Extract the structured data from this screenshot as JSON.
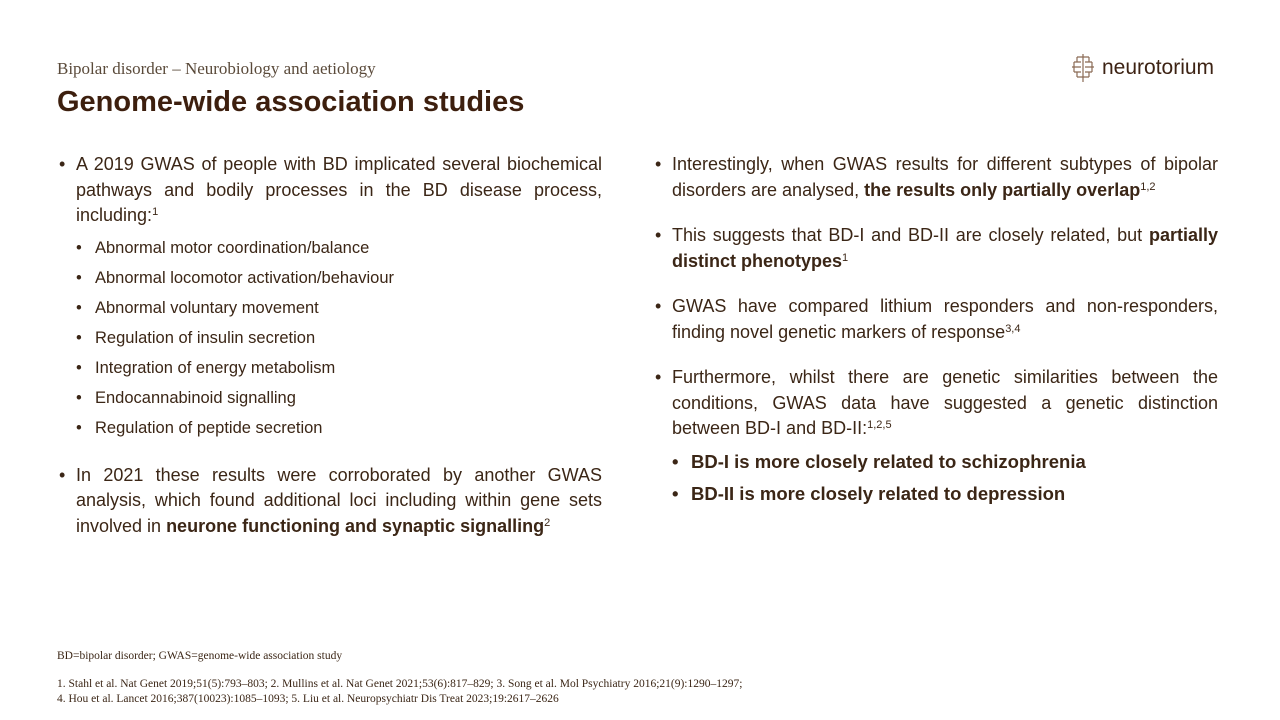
{
  "header": {
    "subtitle": "Bipolar disorder – Neurobiology and aetiology",
    "title": "Genome-wide association studies",
    "logo_text": "neurotorium"
  },
  "left": [
    {
      "runs": [
        {
          "t": "A 2019 GWAS of people with BD implicated several biochemical pathways and bodily processes in the BD disease process, including:"
        },
        {
          "t": "1",
          "sup": true
        }
      ],
      "sub": [
        "Abnormal motor coordination/balance",
        "Abnormal locomotor activation/behaviour",
        "Abnormal voluntary movement",
        "Regulation of insulin secretion",
        "Integration of energy metabolism",
        "Endocannabinoid signalling",
        "Regulation of peptide secretion"
      ]
    },
    {
      "runs": [
        {
          "t": "In 2021 these results were corroborated by another GWAS analysis, which found additional loci including within gene sets involved in "
        },
        {
          "t": "neurone functioning and synaptic signalling",
          "b": true
        },
        {
          "t": "2",
          "sup": true
        }
      ]
    }
  ],
  "right": [
    {
      "runs": [
        {
          "t": "Interestingly, when GWAS results for different subtypes of bipolar disorders are analysed, "
        },
        {
          "t": "the results only partially overlap",
          "b": true
        },
        {
          "t": "1,2",
          "sup": true
        }
      ]
    },
    {
      "runs": [
        {
          "t": "This suggests that BD-I and BD-II are closely related, but "
        },
        {
          "t": "partially distinct phenotypes",
          "b": true
        },
        {
          "t": "1",
          "sup": true
        }
      ]
    },
    {
      "runs": [
        {
          "t": "GWAS have compared lithium responders and non-responders, finding novel genetic markers of response"
        },
        {
          "t": "3,4",
          "sup": true
        }
      ]
    },
    {
      "runs": [
        {
          "t": "Furthermore, whilst there are genetic similarities between the conditions, GWAS data have suggested a genetic distinction between BD-I and BD-II:"
        },
        {
          "t": "1,2,5",
          "sup": true
        }
      ],
      "sub": [
        "BD-I is more closely related to schizophrenia",
        "BD-II is more closely related to depression"
      ]
    }
  ],
  "footer": {
    "abbreviations": "BD=bipolar disorder; GWAS=genome-wide  association study",
    "refs_line1": "1. Stahl et al. Nat Genet 2019;51(5):793–803; 2. Mullins et al. Nat Genet 2021;53(6):817–829; 3. Song et al. Mol Psychiatry 2016;21(9):1290–1297;",
    "refs_line2": "4. Hou et al. Lancet 2016;387(10023):1085–1093; 5. Liu et al. Neuropsychiatr Dis Treat 2023;19:2617–2626"
  },
  "colors": {
    "title": "#3d1f0e",
    "text": "#3b2616"
  }
}
